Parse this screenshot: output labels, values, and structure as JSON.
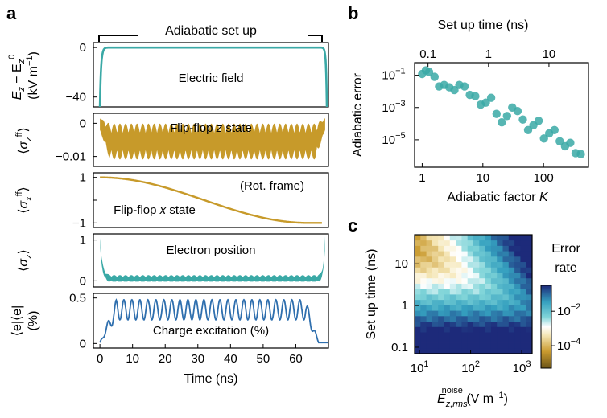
{
  "colors": {
    "teal": "#3aa9a6",
    "gold": "#c79a2a",
    "blue": "#2f6fae",
    "black": "#000000"
  },
  "panels": {
    "a": "a",
    "b": "b",
    "c": "c"
  },
  "chart_data": [
    {
      "id": "a1",
      "type": "line",
      "annotation": "Adiabatic set up",
      "panel_label": "Electric field",
      "ylabel_main": "E",
      "ylabel_sub": "z",
      "ylabel_sep": " − E",
      "ylabel_sub2": "z",
      "ylabel_sup2": "0",
      "ylabel_unit": "(kV m",
      "ylabel_unit_sup": "−1",
      "ylabel_unit_end": ")",
      "yticks": [
        "0",
        "−40"
      ],
      "ylim": [
        -48,
        4
      ],
      "xlim": [
        -2,
        70
      ],
      "color": "teal"
    },
    {
      "id": "a2",
      "type": "line",
      "panel_label_a": "Flip-flop ",
      "panel_label_b": "z",
      "panel_label_c": " state",
      "ylabel_main": "σ",
      "ylabel_sub": "z",
      "ylabel_sup": "ff",
      "yticks": [
        "0",
        "−0.01"
      ],
      "ylim": [
        -0.013,
        0.003
      ],
      "color": "gold"
    },
    {
      "id": "a3",
      "type": "line",
      "panel_label_a": "Flip-flop ",
      "panel_label_b": "x",
      "panel_label_c": " state",
      "note": "(Rot. frame)",
      "ylabel_main": "σ",
      "ylabel_sub": "x",
      "ylabel_sup": "ff",
      "yticks": [
        "1",
        "0",
        "−1"
      ],
      "ylim": [
        -1.2,
        1.2
      ],
      "color": "gold"
    },
    {
      "id": "a4",
      "type": "line",
      "panel_label": "Electron position",
      "ylabel_main": "σ",
      "ylabel_sub": "z",
      "yticks": [
        "1",
        "0"
      ],
      "ylim": [
        -0.15,
        1.15
      ],
      "color": "teal"
    },
    {
      "id": "a5",
      "type": "line",
      "panel_label": "Charge excitation (%)",
      "ylabel_top": "⟨e|⟨e|",
      "ylabel_bottom": "(%)",
      "yticks": [
        "0.5",
        "0"
      ],
      "ylim": [
        -0.05,
        0.55
      ],
      "xlabel": "Time (ns)",
      "xticks": [
        "0",
        "10",
        "20",
        "30",
        "40",
        "50",
        "60"
      ],
      "xtick_values": [
        0,
        10,
        20,
        30,
        40,
        50,
        60
      ],
      "color": "blue"
    },
    {
      "id": "b",
      "type": "scatter",
      "xlabel_a": "Adiabatic factor ",
      "xlabel_b": "K",
      "ylabel": "Adiabatic error",
      "top_xlabel": "Set up time (ns)",
      "xscale": "log",
      "yscale": "log",
      "xlim": [
        0.75,
        550
      ],
      "ylim": [
        2e-07,
        0.6
      ],
      "xticks": [
        "1",
        "10",
        "100"
      ],
      "xtick_values": [
        1,
        10,
        100
      ],
      "yticks_base": [
        "10",
        "10",
        "10"
      ],
      "yticks_exp": [
        "−1",
        "−3",
        "−5"
      ],
      "ytick_values": [
        0.1,
        0.001,
        1e-05
      ],
      "top_xticks": [
        "0.1",
        "1",
        "10"
      ],
      "top_xtick_values": [
        0.1,
        1,
        10
      ],
      "top_xlim": [
        0.06,
        45
      ],
      "points": [
        [
          1.0,
          0.12
        ],
        [
          1.15,
          0.2
        ],
        [
          1.3,
          0.16
        ],
        [
          1.6,
          0.08
        ],
        [
          1.9,
          0.02
        ],
        [
          2.3,
          0.025
        ],
        [
          2.8,
          0.018
        ],
        [
          3.4,
          0.012
        ],
        [
          4.1,
          0.025
        ],
        [
          5.0,
          0.02
        ],
        [
          6.1,
          0.006
        ],
        [
          7.5,
          0.005
        ],
        [
          9.2,
          0.0015
        ],
        [
          11.2,
          0.002
        ],
        [
          13.7,
          0.004
        ],
        [
          16.8,
          0.0004
        ],
        [
          20.5,
          0.00012
        ],
        [
          25.0,
          0.0003
        ],
        [
          30.5,
          0.001
        ],
        [
          37.3,
          0.0006
        ],
        [
          45.6,
          0.00018
        ],
        [
          55.7,
          4e-05
        ],
        [
          68.0,
          8e-05
        ],
        [
          83.1,
          0.00015
        ],
        [
          101.5,
          1.2e-05
        ],
        [
          124.0,
          2.5e-05
        ],
        [
          151.5,
          4e-05
        ],
        [
          185.0,
          8e-06
        ],
        [
          226.0,
          4e-06
        ],
        [
          276.0,
          6.5e-06
        ],
        [
          337.0,
          1.5e-06
        ],
        [
          412.0,
          1.3e-06
        ]
      ],
      "color": "teal"
    },
    {
      "id": "c",
      "type": "heatmap",
      "xlabel_main": "E",
      "xlabel_sub": "z,rms",
      "xlabel_sup": "noise",
      "xlabel_unit": " (V m",
      "xlabel_unit_sup": "−1",
      "xlabel_unit_end": ")",
      "ylabel": "Set up time (ns)",
      "xscale": "log",
      "yscale": "log",
      "xlim": [
        8,
        1600
      ],
      "ylim": [
        0.07,
        50
      ],
      "xticks_base": [
        "10",
        "10",
        "10"
      ],
      "xticks_exp": [
        "1",
        "2",
        "3"
      ],
      "xtick_values": [
        10,
        100,
        1000
      ],
      "yticks": [
        "0.1",
        "1",
        "10"
      ],
      "ytick_values": [
        0.1,
        1,
        10
      ],
      "colorbar_title_a": "Error",
      "colorbar_title_b": "rate",
      "colorbar_ticks_base": [
        "10",
        "10"
      ],
      "colorbar_ticks_exp": [
        "−2",
        "−4"
      ],
      "colorbar_tick_values": [
        -2,
        -4
      ],
      "colorbar_range": [
        -5.3,
        -0.5
      ]
    }
  ]
}
